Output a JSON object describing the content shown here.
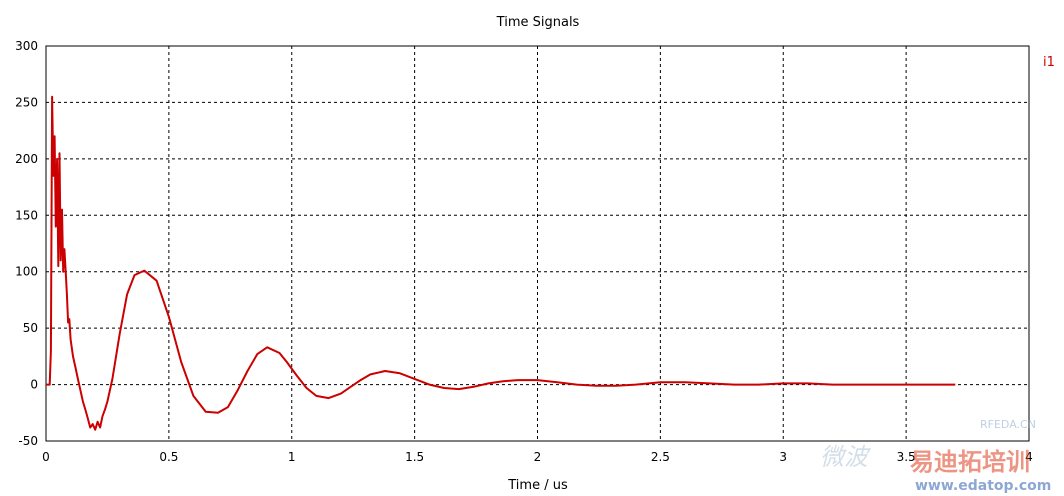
{
  "chart_data": {
    "type": "line",
    "title": "Time Signals",
    "xlabel": "Time / us",
    "ylabel": "",
    "xlim": [
      0,
      4
    ],
    "ylim": [
      -50,
      300
    ],
    "xticks": [
      0,
      0.5,
      1,
      1.5,
      2,
      2.5,
      3,
      3.5,
      4
    ],
    "xtick_labels": [
      "0",
      "0.5",
      "1",
      "1.5",
      "2",
      "2.5",
      "3",
      "3.5",
      "4"
    ],
    "yticks": [
      -50,
      0,
      50,
      100,
      150,
      200,
      250,
      300
    ],
    "ytick_labels": [
      "-50",
      "0",
      "50",
      "100",
      "150",
      "200",
      "250",
      "300"
    ],
    "grid": true,
    "legend_position": "top-right",
    "series": [
      {
        "name": "i1",
        "color": "#cc0000",
        "x": [
          0,
          0.015,
          0.02,
          0.025,
          0.03,
          0.035,
          0.04,
          0.045,
          0.05,
          0.055,
          0.06,
          0.065,
          0.07,
          0.075,
          0.08,
          0.085,
          0.09,
          0.095,
          0.1,
          0.11,
          0.12,
          0.13,
          0.14,
          0.15,
          0.16,
          0.17,
          0.18,
          0.19,
          0.2,
          0.21,
          0.22,
          0.23,
          0.24,
          0.25,
          0.27,
          0.3,
          0.33,
          0.36,
          0.4,
          0.45,
          0.5,
          0.55,
          0.6,
          0.65,
          0.7,
          0.74,
          0.78,
          0.82,
          0.86,
          0.9,
          0.95,
          0.98,
          1.02,
          1.06,
          1.1,
          1.15,
          1.2,
          1.24,
          1.28,
          1.32,
          1.38,
          1.44,
          1.5,
          1.56,
          1.62,
          1.68,
          1.74,
          1.8,
          1.86,
          1.92,
          2.0,
          2.08,
          2.16,
          2.24,
          2.32,
          2.4,
          2.5,
          2.6,
          2.7,
          2.8,
          2.9,
          3.0,
          3.1,
          3.2,
          3.3,
          3.4,
          3.5,
          3.6,
          3.7
        ],
        "values": [
          0,
          0,
          30,
          255,
          185,
          220,
          140,
          200,
          105,
          205,
          110,
          155,
          100,
          120,
          100,
          80,
          55,
          58,
          40,
          25,
          15,
          5,
          -5,
          -15,
          -22,
          -30,
          -38,
          -35,
          -40,
          -33,
          -38,
          -28,
          -22,
          -15,
          5,
          45,
          80,
          97,
          101,
          92,
          60,
          20,
          -10,
          -24,
          -25,
          -20,
          -5,
          12,
          27,
          33,
          28,
          20,
          8,
          -3,
          -10,
          -12,
          -8,
          -2,
          4,
          9,
          12,
          10,
          5,
          0,
          -3,
          -4,
          -2,
          1,
          3,
          4,
          4,
          2,
          0,
          -1,
          -1,
          0,
          2,
          2,
          1,
          0,
          0,
          1,
          1,
          0,
          0,
          0,
          0,
          0,
          0
        ]
      }
    ]
  },
  "watermark": {
    "line1": "RFEDA.CN",
    "line2": "易迪拓培训",
    "url": "www.edatop.com",
    "handwriting": "微波"
  }
}
